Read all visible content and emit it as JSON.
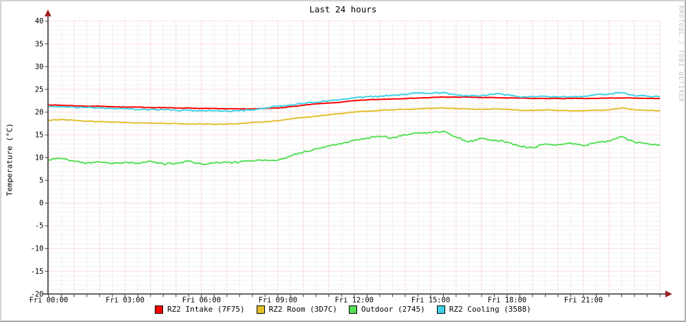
{
  "title": "Last 24 hours",
  "watermark": "RRDTOOL / TOBI OETIKER",
  "colors": {
    "background": "#ffffff",
    "bevel_light": "#d2d2d2",
    "bevel_dark": "#a5a5a5",
    "grid_major": "#ef9f9f",
    "grid_minor": "#dadada",
    "axis": "#3d3d3d",
    "arrow": "#9e1f1f",
    "text": "#000000",
    "watermark_text": "#bcbcbc"
  },
  "chart_data": {
    "type": "line",
    "title": "Last 24 hours",
    "xlabel": "",
    "ylabel": "Temperature (°C)",
    "ylim": [
      -20,
      40
    ],
    "xlim_hours": [
      0,
      24
    ],
    "y_major_step": 5,
    "y_minor_step": 1,
    "x_major_step_hours": 1,
    "x_minor_step_hours": 0.5,
    "grid": "on",
    "legend_position": "bottom",
    "x_tick_labels": [
      {
        "hour": 0,
        "label": "Fri 00:00"
      },
      {
        "hour": 3,
        "label": "Fri 03:00"
      },
      {
        "hour": 6,
        "label": "Fri 06:00"
      },
      {
        "hour": 9,
        "label": "Fri 09:00"
      },
      {
        "hour": 12,
        "label": "Fri 12:00"
      },
      {
        "hour": 15,
        "label": "Fri 15:00"
      },
      {
        "hour": 18,
        "label": "Fri 18:00"
      },
      {
        "hour": 21,
        "label": "Fri 21:00"
      }
    ],
    "x_hours": [
      0,
      0.5,
      1,
      1.5,
      2,
      2.5,
      3,
      3.5,
      4,
      4.5,
      5,
      5.5,
      6,
      6.5,
      7,
      7.5,
      8,
      8.5,
      9,
      9.5,
      10,
      10.5,
      11,
      11.5,
      12,
      12.5,
      13,
      13.5,
      14,
      14.5,
      15,
      15.5,
      16,
      16.5,
      17,
      17.5,
      18,
      18.5,
      19,
      19.5,
      20,
      20.5,
      21,
      21.5,
      22,
      22.5,
      23,
      23.5,
      24
    ],
    "series": [
      {
        "name": "RZ2 Intake (7F75)",
        "color": "#ff0000",
        "jitter": 0.05,
        "values": [
          21.6,
          21.5,
          21.4,
          21.3,
          21.3,
          21.2,
          21.1,
          21.1,
          21.0,
          21.0,
          20.9,
          20.9,
          20.8,
          20.8,
          20.7,
          20.7,
          20.7,
          20.8,
          20.9,
          21.2,
          21.5,
          21.8,
          22.0,
          22.2,
          22.5,
          22.7,
          22.8,
          22.9,
          23.0,
          23.1,
          23.2,
          23.3,
          23.3,
          23.3,
          23.2,
          23.2,
          23.1,
          23.1,
          23.0,
          23.0,
          23.0,
          23.0,
          23.0,
          23.0,
          23.1,
          23.1,
          23.1,
          23.0,
          23.0
        ]
      },
      {
        "name": "RZ2 Room (3D7C)",
        "color": "#e2c02c",
        "jitter": 0.08,
        "values": [
          18.2,
          18.4,
          18.2,
          18.0,
          17.9,
          17.8,
          17.7,
          17.6,
          17.6,
          17.5,
          17.5,
          17.4,
          17.4,
          17.3,
          17.4,
          17.5,
          17.7,
          17.9,
          18.1,
          18.5,
          18.8,
          19.1,
          19.4,
          19.7,
          20.0,
          20.2,
          20.4,
          20.5,
          20.6,
          20.7,
          20.8,
          20.9,
          20.8,
          20.7,
          20.6,
          20.7,
          20.6,
          20.4,
          20.4,
          20.5,
          20.4,
          20.3,
          20.3,
          20.4,
          20.5,
          20.9,
          20.5,
          20.4,
          20.3
        ]
      },
      {
        "name": "Outdoor (2745)",
        "color": "#55e055",
        "jitter": 0.2,
        "values": [
          9.5,
          9.8,
          9.2,
          8.8,
          9.0,
          8.7,
          9.0,
          8.8,
          9.2,
          8.6,
          8.8,
          9.2,
          8.6,
          8.8,
          8.9,
          9.0,
          9.3,
          9.5,
          9.4,
          10.3,
          11.2,
          12.0,
          12.6,
          13.0,
          13.8,
          14.3,
          14.6,
          14.4,
          15.0,
          15.4,
          15.5,
          15.8,
          14.5,
          13.5,
          14.2,
          13.8,
          13.4,
          12.5,
          12.2,
          13.0,
          12.9,
          13.2,
          12.6,
          13.3,
          13.6,
          14.6,
          13.4,
          13.1,
          12.8
        ]
      },
      {
        "name": "RZ2 Cooling (3588)",
        "color": "#3ed2e6",
        "jitter": 0.15,
        "values": [
          21.3,
          21.2,
          21.1,
          21.0,
          20.9,
          20.8,
          20.7,
          20.6,
          20.6,
          20.5,
          20.4,
          20.4,
          20.3,
          20.3,
          20.2,
          20.3,
          20.5,
          20.9,
          21.3,
          21.6,
          21.9,
          22.2,
          22.5,
          22.8,
          23.1,
          23.4,
          23.5,
          23.7,
          23.9,
          24.3,
          24.1,
          24.3,
          23.8,
          23.5,
          23.6,
          24.0,
          23.8,
          23.3,
          23.4,
          23.5,
          23.3,
          23.4,
          23.5,
          23.9,
          24.0,
          24.3,
          23.6,
          23.5,
          23.3
        ]
      }
    ]
  }
}
